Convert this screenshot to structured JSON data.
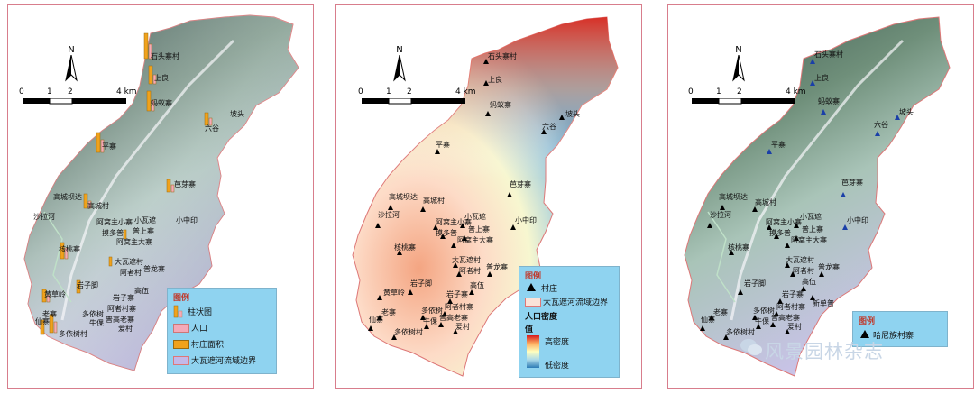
{
  "north_label": "N",
  "scale": {
    "ticks": [
      "0",
      "1",
      "2",
      "4 km"
    ]
  },
  "panel1": {
    "legend": {
      "title": "图例",
      "items": [
        {
          "label": "柱状图",
          "symbol": "bar-chart-icon"
        },
        {
          "label": "人口",
          "color": "#f4a9b8"
        },
        {
          "label": "村庄面积",
          "color": "#f0a21c"
        },
        {
          "label": "大瓦遮河流域边界",
          "color": "#c3b8e8"
        }
      ]
    },
    "villages": [
      "石头寨村",
      "上良",
      "蚂蚁寨",
      "坡头",
      "六谷",
      "平寨",
      "芭芽寨",
      "高城坝达",
      "高城村",
      "沙拉河",
      "阿窝主小寨",
      "小瓦遮",
      "小中印",
      "摸多普",
      "普上寨",
      "阿窝主大寨",
      "核桃寨",
      "大瓦遮村",
      "阿者村",
      "普龙寨",
      "黄草岭",
      "岩子脚",
      "岩子寨",
      "高伍",
      "老寨",
      "仙寨",
      "多依树",
      "阿者村寨",
      "牛倮",
      "普高老寨",
      "多依树村",
      "爱村"
    ]
  },
  "panel2": {
    "legend": {
      "title": "图例",
      "items": [
        {
          "label": "村庄",
          "symbol": "triangle-icon"
        },
        {
          "label": "大瓦遮河流域边界",
          "color": "#fbe2d8"
        }
      ],
      "density_title": "人口密度",
      "value_label": "值",
      "high": "高密度",
      "low": "低密度",
      "ramp": [
        "#d7191c",
        "#fdae61",
        "#ffffbf",
        "#abd9e9",
        "#2c7bb6"
      ]
    },
    "villages": [
      "石头寨村",
      "上良",
      "蚂蚁寨",
      "坡头",
      "六谷",
      "平寨",
      "芭芽寨",
      "高城坝达",
      "高城村",
      "沙拉河",
      "阿窝主小寨",
      "小瓦遮",
      "小中印",
      "摸多普",
      "普上寨",
      "阿窝主大寨",
      "核桃寨",
      "大瓦遮村",
      "阿者村",
      "普龙寨",
      "黄草岭",
      "岩子脚",
      "岩子寨",
      "高伍",
      "老寨",
      "仙寨",
      "多依树",
      "阿者村寨",
      "牛倮",
      "普高老寨",
      "多依树村",
      "爱村"
    ]
  },
  "panel3": {
    "legend": {
      "title": "图例",
      "items": [
        {
          "label": "哈尼族村寨",
          "symbol": "triangle-icon"
        }
      ]
    },
    "villages": [
      "石头寨村",
      "上良",
      "蚂蚁寨",
      "坡头",
      "六谷",
      "平寨",
      "芭芽寨",
      "高城坝达",
      "高城村",
      "沙拉河",
      "阿窝主小寨",
      "小瓦遮",
      "小中印",
      "摸多普",
      "普上寨",
      "阿窝主大寨",
      "核桃寨",
      "大瓦遮村",
      "阿者村",
      "普龙寨",
      "岩子脚",
      "岩子寨",
      "新单普",
      "高伍",
      "老寨",
      "仙寨",
      "多依树",
      "阿者村寨",
      "牛倮",
      "普高老寨",
      "多依树村",
      "爱村"
    ]
  },
  "watermark": "风景园林杂志"
}
